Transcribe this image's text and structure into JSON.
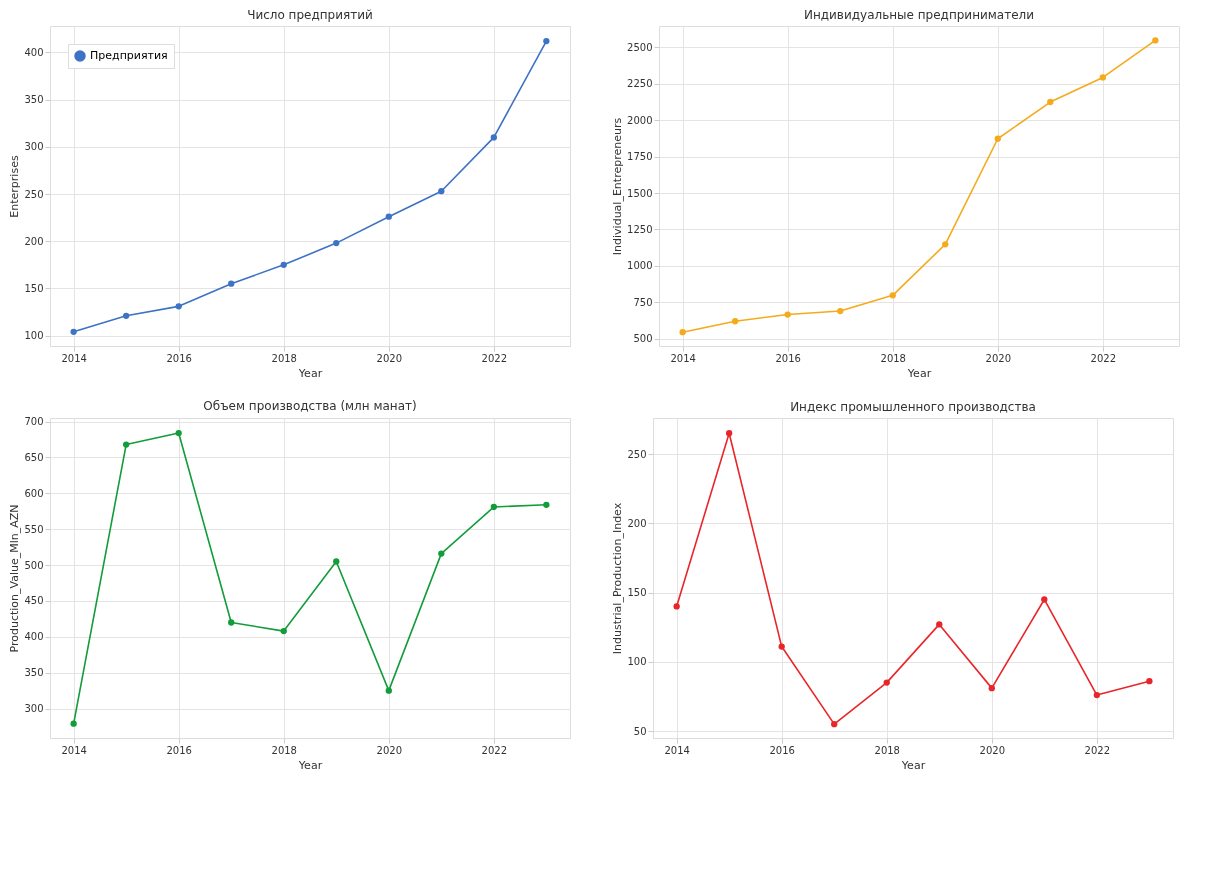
{
  "chart_data": [
    {
      "type": "line",
      "title": "Число предприятий",
      "xlabel": "Year",
      "ylabel": "Enterprises",
      "x": [
        2014,
        2015,
        2016,
        2017,
        2018,
        2019,
        2020,
        2021,
        2022,
        2023
      ],
      "series": [
        {
          "name": "Предприятия",
          "color": "#3d72c4",
          "values": [
            104,
            121,
            131,
            155,
            175,
            198,
            226,
            253,
            310,
            412
          ]
        }
      ],
      "xlim": [
        2013.55,
        2023.45
      ],
      "xticks": [
        2014,
        2016,
        2018,
        2020,
        2022
      ],
      "ylim": [
        89,
        428
      ],
      "yticks": [
        100,
        150,
        200,
        250,
        300,
        350,
        400
      ],
      "grid": true,
      "legend": "top left",
      "marker": "circle",
      "line_style": "solid"
    },
    {
      "type": "line",
      "title": "Индивидуальные предприниматели",
      "xlabel": "Year",
      "ylabel": "Individual_Entrepreneurs",
      "x": [
        2014,
        2015,
        2016,
        2017,
        2018,
        2019,
        2020,
        2021,
        2022,
        2023
      ],
      "series": [
        {
          "color": "#f5aa1c",
          "values": [
            545,
            620,
            666,
            690,
            798,
            1148,
            1873,
            2125,
            2294,
            2548
          ]
        }
      ],
      "xlim": [
        2013.55,
        2023.45
      ],
      "xticks": [
        2014,
        2016,
        2018,
        2020,
        2022
      ],
      "ylim": [
        450,
        2647
      ],
      "yticks": [
        500,
        750,
        1000,
        1250,
        1500,
        1750,
        2000,
        2250,
        2500
      ],
      "grid": true,
      "marker": "circle",
      "line_style": "solid"
    },
    {
      "type": "line",
      "title": "Объем производства (млн манат)",
      "xlabel": "Year",
      "ylabel": "Production_Value_Mln_AZN",
      "x": [
        2014,
        2015,
        2016,
        2017,
        2018,
        2019,
        2020,
        2021,
        2022,
        2023
      ],
      "series": [
        {
          "color": "#129c3a",
          "values": [
            279,
            668,
            684,
            420,
            408,
            505,
            325,
            516,
            581,
            584
          ]
        }
      ],
      "xlim": [
        2013.55,
        2023.45
      ],
      "xticks": [
        2014,
        2016,
        2018,
        2020,
        2022
      ],
      "ylim": [
        259,
        705
      ],
      "yticks": [
        300,
        350,
        400,
        450,
        500,
        550,
        600,
        650,
        700
      ],
      "grid": true,
      "marker": "circle",
      "line_style": "solid"
    },
    {
      "type": "line",
      "title": "Индекс промышленного производства",
      "xlabel": "Year",
      "ylabel": "Industrial_Production_Index",
      "x": [
        2014,
        2015,
        2016,
        2017,
        2018,
        2019,
        2020,
        2021,
        2022,
        2023
      ],
      "series": [
        {
          "color": "#e8262a",
          "values": [
            140,
            265,
            111,
            55,
            85,
            127,
            81,
            145,
            76,
            86
          ]
        }
      ],
      "xlim": [
        2013.55,
        2023.45
      ],
      "xticks": [
        2014,
        2016,
        2018,
        2020,
        2022
      ],
      "ylim": [
        45,
        276
      ],
      "yticks": [
        50,
        100,
        150,
        200,
        250
      ],
      "grid": true,
      "marker": "circle",
      "line_style": "solid"
    }
  ]
}
